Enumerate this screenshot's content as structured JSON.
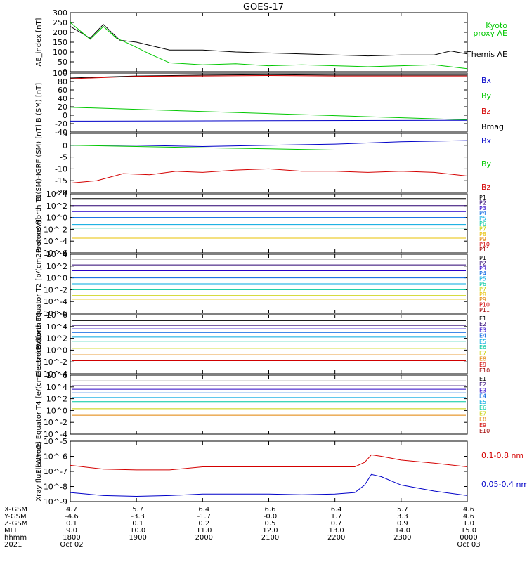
{
  "title": "GOES-17",
  "colors": {
    "black": "#000000",
    "green": "#00c800",
    "red": "#d40000",
    "blue": "#0000c8"
  },
  "chart_data": [
    {
      "type": "line",
      "ylabel": "AE_index [nT]",
      "ylim": [
        0,
        300
      ],
      "yticks": [
        "300",
        "250",
        "200",
        "150",
        "100",
        "50",
        "0"
      ],
      "legend": [
        {
          "text": "Kyoto",
          "color": "#00c800"
        },
        {
          "text": "proxy AE",
          "color": "#00c800"
        },
        {
          "text": "Themis AE",
          "color": "#000000"
        }
      ],
      "series": [
        {
          "color": "#000000",
          "x": [
            0.0,
            0.3,
            0.5,
            0.75,
            1.0,
            1.5,
            2,
            2.5,
            3,
            3.5,
            4,
            4.5,
            5,
            5.5,
            5.75,
            6
          ],
          "y": [
            230,
            170,
            240,
            160,
            150,
            110,
            110,
            100,
            95,
            90,
            85,
            80,
            85,
            85,
            105,
            90
          ]
        },
        {
          "color": "#00c800",
          "x": [
            0.0,
            0.3,
            0.5,
            0.7,
            0.9,
            1.2,
            1.5,
            2,
            2.5,
            3,
            3.5,
            4,
            4.5,
            5,
            5.5,
            6
          ],
          "y": [
            250,
            165,
            230,
            170,
            140,
            90,
            45,
            35,
            40,
            30,
            35,
            30,
            25,
            30,
            35,
            15
          ]
        }
      ]
    },
    {
      "type": "line",
      "ylabel": "B (SM) [nT]",
      "ylim": [
        -45,
        100
      ],
      "yticks": [
        "100",
        "80",
        "60",
        "40",
        "20",
        "0",
        "-20",
        "-40"
      ],
      "legend": [
        {
          "text": "Bx",
          "color": "#0000c8"
        },
        {
          "text": "By",
          "color": "#00c800"
        },
        {
          "text": "Bz",
          "color": "#d40000"
        },
        {
          "text": "Bmag",
          "color": "#000000"
        }
      ],
      "series": [
        {
          "color": "#000000",
          "x": [
            0,
            1,
            2,
            3,
            4,
            5,
            6
          ],
          "y": [
            88,
            93,
            95,
            96,
            95,
            95,
            95
          ]
        },
        {
          "color": "#d40000",
          "x": [
            0,
            1,
            2,
            3,
            4,
            5,
            6
          ],
          "y": [
            86,
            92,
            93,
            94,
            93,
            93,
            93
          ]
        },
        {
          "color": "#00c800",
          "x": [
            0,
            6
          ],
          "y": [
            16,
            -15
          ]
        },
        {
          "color": "#0000c8",
          "x": [
            0,
            6
          ],
          "y": [
            -18,
            -16
          ]
        }
      ]
    },
    {
      "type": "line",
      "ylabel": "B (SM)-IGRF (SM) [nT]",
      "ylim": [
        -20,
        5
      ],
      "yticks": [
        "5",
        "0",
        "-5",
        "-10",
        "-15",
        "-20"
      ],
      "legend": [
        {
          "text": "Bx",
          "color": "#0000c8"
        },
        {
          "text": "By",
          "color": "#00c800"
        },
        {
          "text": "Bz",
          "color": "#d40000"
        }
      ],
      "series": [
        {
          "color": "#0000c8",
          "x": [
            0,
            1,
            2,
            3,
            4,
            5,
            6
          ],
          "y": [
            0,
            0,
            -0.5,
            0,
            0.5,
            1.5,
            2
          ]
        },
        {
          "color": "#00c800",
          "x": [
            0,
            1,
            2,
            3,
            4,
            5,
            6
          ],
          "y": [
            0,
            -0.5,
            -1,
            -1.5,
            -2,
            -2,
            -2
          ]
        },
        {
          "color": "#d40000",
          "x": [
            0,
            0.4,
            0.8,
            1.2,
            1.6,
            2,
            2.5,
            3,
            3.5,
            4,
            4.5,
            5,
            5.5,
            6
          ],
          "y": [
            -16,
            -15,
            -12,
            -12.5,
            -11,
            -11.5,
            -10.5,
            -10,
            -11,
            -11,
            -11.5,
            -11,
            -11.5,
            -13
          ]
        }
      ]
    },
    {
      "type": "line",
      "ylabel": "Protons North T1",
      "log": true,
      "ylim": [
        -6,
        4
      ],
      "yticks": [
        "10^4",
        "10^2",
        "10^0",
        "10^-2",
        "10^-4",
        "10^-6"
      ],
      "legend": [
        {
          "text": "P1",
          "color": "#000000"
        },
        {
          "text": "P2",
          "color": "#2a0070"
        },
        {
          "text": "P3",
          "color": "#2a00c8"
        },
        {
          "text": "P4",
          "color": "#0060e0"
        },
        {
          "text": "P5",
          "color": "#00a8e0"
        },
        {
          "text": "P6",
          "color": "#00c8a0"
        },
        {
          "text": "P7",
          "color": "#c8d000"
        },
        {
          "text": "P8",
          "color": "#e8c000"
        },
        {
          "text": "P9",
          "color": "#e08000"
        },
        {
          "text": "P10",
          "color": "#d00000"
        },
        {
          "text": "P11",
          "color": "#a00000"
        }
      ],
      "levels": [
        {
          "color": "#000000",
          "y": 3.2
        },
        {
          "color": "#2a0070",
          "y": 2.0
        },
        {
          "color": "#2a00c8",
          "y": 1.0
        },
        {
          "color": "#0060e0",
          "y": 0.0
        },
        {
          "color": "#00a8e0",
          "y": -1.2
        },
        {
          "color": "#00c8a0",
          "y": -1.8
        },
        {
          "color": "#c8d000",
          "y": -2.6
        },
        {
          "color": "#e8c000",
          "y": -3.5
        }
      ]
    },
    {
      "type": "line",
      "ylabel": "Protons Equator T2 [p/(cm2-s-sr-keV)]",
      "log": true,
      "ylim": [
        -6,
        4
      ],
      "yticks": [
        "10^4",
        "10^2",
        "10^0",
        "10^-2",
        "10^-4",
        "10^-6"
      ],
      "legend": [
        {
          "text": "P1",
          "color": "#000000"
        },
        {
          "text": "P2",
          "color": "#2a0070"
        },
        {
          "text": "P3",
          "color": "#2a00c8"
        },
        {
          "text": "P4",
          "color": "#0060e0"
        },
        {
          "text": "P5",
          "color": "#00a8e0"
        },
        {
          "text": "P6",
          "color": "#00c8a0"
        },
        {
          "text": "P7",
          "color": "#c8d000"
        },
        {
          "text": "P8",
          "color": "#e8c000"
        },
        {
          "text": "P9",
          "color": "#e08000"
        },
        {
          "text": "P10",
          "color": "#d00000"
        },
        {
          "text": "P11",
          "color": "#a00000"
        }
      ],
      "levels": [
        {
          "color": "#000000",
          "y": 3.2
        },
        {
          "color": "#2a0070",
          "y": 2.2
        },
        {
          "color": "#2a00c8",
          "y": 1.2
        },
        {
          "color": "#0060e0",
          "y": 0.0
        },
        {
          "color": "#00a8e0",
          "y": -1.0
        },
        {
          "color": "#00c8a0",
          "y": -2.0
        },
        {
          "color": "#c8d000",
          "y": -3.0
        },
        {
          "color": "#e8c000",
          "y": -3.6
        }
      ]
    },
    {
      "type": "line",
      "ylabel": "Electrons North T3",
      "log": true,
      "ylim": [
        -4,
        6
      ],
      "yticks": [
        "10^6",
        "10^4",
        "10^2",
        "10^0",
        "10^-2",
        "10^-4"
      ],
      "legend": [
        {
          "text": "E1",
          "color": "#000000"
        },
        {
          "text": "E2",
          "color": "#2a0070"
        },
        {
          "text": "E3",
          "color": "#2a00c8"
        },
        {
          "text": "E4",
          "color": "#0060e0"
        },
        {
          "text": "E5",
          "color": "#00a8e0"
        },
        {
          "text": "E6",
          "color": "#00c8a0"
        },
        {
          "text": "E7",
          "color": "#c8d000"
        },
        {
          "text": "E8",
          "color": "#e08000"
        },
        {
          "text": "E9",
          "color": "#d00000"
        },
        {
          "text": "E10",
          "color": "#a00000"
        }
      ],
      "levels": [
        {
          "color": "#000000",
          "y": 5.0
        },
        {
          "color": "#2a0070",
          "y": 4.2
        },
        {
          "color": "#2a00c8",
          "y": 3.6
        },
        {
          "color": "#0060e0",
          "y": 3.0
        },
        {
          "color": "#00a8e0",
          "y": 2.2
        },
        {
          "color": "#00c8a0",
          "y": 1.5
        },
        {
          "color": "#c8d000",
          "y": 0.3
        },
        {
          "color": "#e08000",
          "y": -0.8
        },
        {
          "color": "#d00000",
          "y": -1.8
        }
      ]
    },
    {
      "type": "line",
      "ylabel": "Electrons Equator T4 [e/(cm2-s-sr-keV)]",
      "log": true,
      "ylim": [
        -4,
        6
      ],
      "yticks": [
        "10^6",
        "10^4",
        "10^2",
        "10^0",
        "10^-2",
        "10^-4"
      ],
      "legend": [
        {
          "text": "E1",
          "color": "#000000"
        },
        {
          "text": "E2",
          "color": "#2a0070"
        },
        {
          "text": "E3",
          "color": "#2a00c8"
        },
        {
          "text": "E4",
          "color": "#0060e0"
        },
        {
          "text": "E5",
          "color": "#00a8e0"
        },
        {
          "text": "E6",
          "color": "#00c8a0"
        },
        {
          "text": "E7",
          "color": "#c8d000"
        },
        {
          "text": "E8",
          "color": "#e08000"
        },
        {
          "text": "E9",
          "color": "#d00000"
        },
        {
          "text": "E10",
          "color": "#a00000"
        }
      ],
      "levels": [
        {
          "color": "#000000",
          "y": 5.0
        },
        {
          "color": "#2a0070",
          "y": 4.2
        },
        {
          "color": "#2a00c8",
          "y": 3.6
        },
        {
          "color": "#0060e0",
          "y": 3.0
        },
        {
          "color": "#00a8e0",
          "y": 2.2
        },
        {
          "color": "#00c8a0",
          "y": 1.5
        },
        {
          "color": "#c8d000",
          "y": 0.3
        },
        {
          "color": "#e08000",
          "y": -0.8
        },
        {
          "color": "#d00000",
          "y": -1.8
        }
      ]
    },
    {
      "type": "line",
      "ylabel": "Xray flux [W/m2]",
      "log": true,
      "ylim": [
        -9,
        -5
      ],
      "yticks": [
        "10^-5",
        "10^-6",
        "10^-7",
        "10^-8",
        "10^-9"
      ],
      "legend": [
        {
          "text": "0.1-0.8 nm",
          "color": "#d40000"
        },
        {
          "text": "0.05-0.4 nm",
          "color": "#0000c8"
        }
      ],
      "series": [
        {
          "color": "#d40000",
          "x": [
            0,
            0.5,
            1,
            1.5,
            2,
            2.5,
            3,
            3.5,
            4,
            4.3,
            4.45,
            4.55,
            4.7,
            5,
            5.5,
            6
          ],
          "y": [
            -6.6,
            -6.85,
            -6.9,
            -6.9,
            -6.7,
            -6.7,
            -6.7,
            -6.7,
            -6.7,
            -6.7,
            -6.4,
            -5.9,
            -6.0,
            -6.25,
            -6.45,
            -6.7
          ]
        },
        {
          "color": "#0000c8",
          "x": [
            0,
            0.5,
            1,
            1.5,
            2,
            2.5,
            3,
            3.5,
            4,
            4.3,
            4.45,
            4.55,
            4.7,
            5,
            5.5,
            6
          ],
          "y": [
            -8.4,
            -8.6,
            -8.65,
            -8.6,
            -8.5,
            -8.5,
            -8.5,
            -8.55,
            -8.5,
            -8.4,
            -7.9,
            -7.2,
            -7.35,
            -7.9,
            -8.3,
            -8.6
          ]
        }
      ]
    }
  ],
  "axis": {
    "row_labels": [
      "X-GSM",
      "Y-GSM",
      "Z-GSM",
      "MLT",
      "hhmm",
      "2021"
    ],
    "columns": [
      [
        "4.7",
        "-4.6",
        "0.1",
        "9.0",
        "1800",
        "Oct 02"
      ],
      [
        "5.7",
        "-3.3",
        "0.1",
        "10.0",
        "1900",
        ""
      ],
      [
        "6.4",
        "-1.7",
        "0.2",
        "11.0",
        "2000",
        ""
      ],
      [
        "6.6",
        "-0.0",
        "0.5",
        "12.0",
        "2100",
        ""
      ],
      [
        "6.4",
        "1.7",
        "0.7",
        "13.0",
        "2200",
        ""
      ],
      [
        "5.7",
        "3.3",
        "0.9",
        "14.0",
        "2300",
        ""
      ],
      [
        "4.6",
        "4.6",
        "1.0",
        "15.0",
        "0000",
        "Oct 03"
      ]
    ]
  }
}
